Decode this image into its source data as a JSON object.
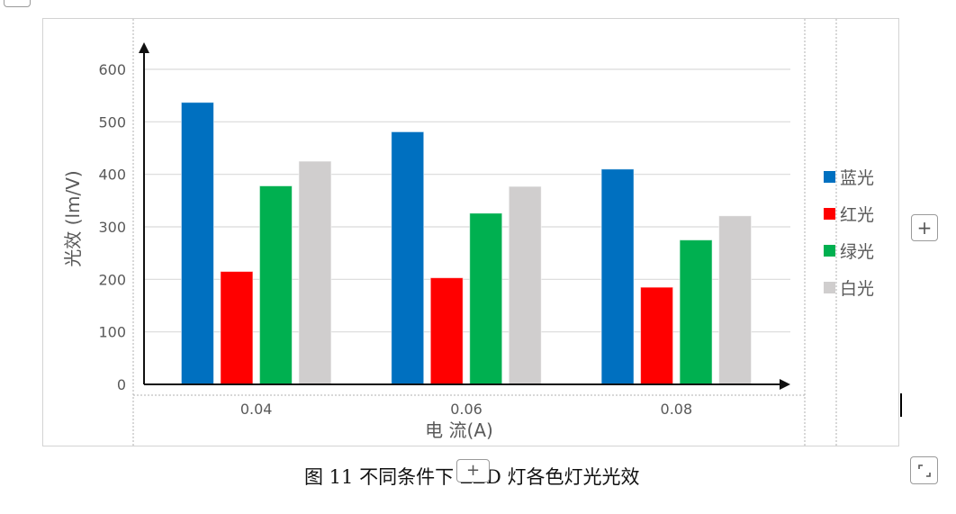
{
  "caption": "图 11 不同条件下 LED 灯各色灯光光效",
  "controls": {
    "add_icon": "plus-icon",
    "expand_icon": "expand-icon"
  },
  "chart_data": {
    "type": "bar",
    "title": "",
    "xlabel": "电 流(A)",
    "ylabel": "光效 (lm/V)",
    "categories": [
      "0.04",
      "0.06",
      "0.08"
    ],
    "ylim": [
      0,
      600
    ],
    "yticks": [
      0,
      100,
      200,
      300,
      400,
      500,
      600
    ],
    "grid": true,
    "legend_position": "right",
    "series": [
      {
        "name": "蓝光",
        "color": "#0070C0",
        "values": [
          537,
          481,
          410
        ]
      },
      {
        "name": "红光",
        "color": "#FF0000",
        "values": [
          215,
          203,
          185
        ]
      },
      {
        "name": "绿光",
        "color": "#00B050",
        "values": [
          378,
          326,
          275
        ]
      },
      {
        "name": "白光",
        "color": "#D0CECE",
        "values": [
          425,
          377,
          321
        ]
      }
    ]
  }
}
